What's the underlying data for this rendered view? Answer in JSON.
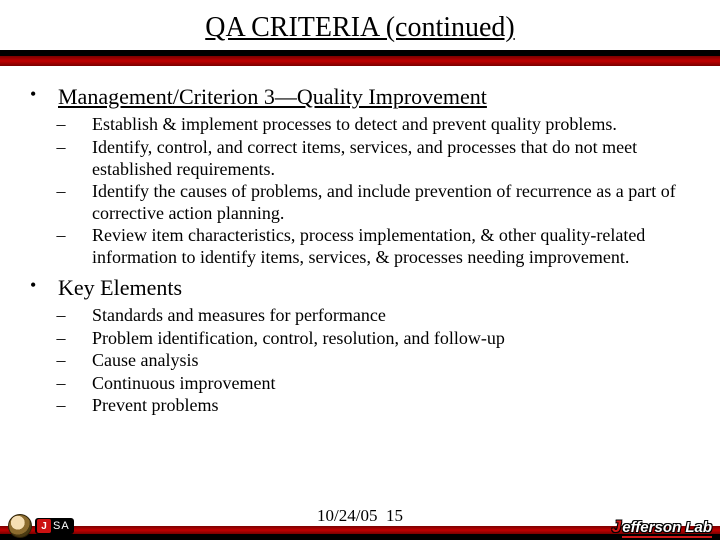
{
  "title": "QA CRITERIA (continued)",
  "sections": [
    {
      "bullet": "•",
      "heading": "Management/Criterion 3—Quality Improvement",
      "underline": true,
      "items": [
        "Establish & implement processes to detect and prevent quality problems.",
        "Identify, control, and correct items, services, and processes that do not meet established requirements.",
        "Identify the causes of problems, and include prevention of recurrence as a part of corrective action planning.",
        "Review item characteristics, process implementation, & other quality-related information to identify items, services, & processes needing improvement."
      ]
    },
    {
      "bullet": "•",
      "heading": "Key Elements",
      "underline": false,
      "items": [
        "Standards and measures for performance",
        "Problem identification, control, resolution, and follow-up",
        "Cause analysis",
        "Continuous improvement",
        "Prevent problems"
      ]
    }
  ],
  "dash": "–",
  "footer": {
    "date": "10/24/05",
    "slide_num": "15",
    "jsa_initial": "J",
    "jsa_rest": "SA",
    "jlab_j": "J",
    "jlab_rest": "efferson Lab"
  },
  "colors": {
    "red_bar": "#b00000",
    "black": "#000000"
  }
}
